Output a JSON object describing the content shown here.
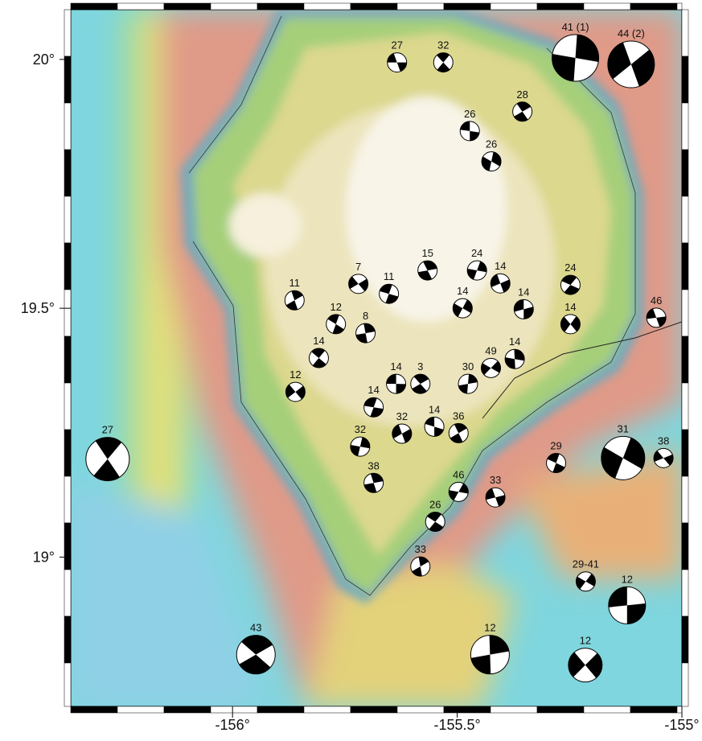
{
  "map": {
    "xlim": [
      -156.36,
      -155
    ],
    "ylim": [
      18.7,
      20.1
    ],
    "xticks": [
      {
        "value": -156,
        "label": "-156°"
      },
      {
        "value": -155.5,
        "label": "-155.5°"
      },
      {
        "value": -155,
        "label": "-155°"
      }
    ],
    "yticks": [
      {
        "value": 20,
        "label": "20°"
      },
      {
        "value": 19.5,
        "label": "19.5°"
      },
      {
        "value": 19,
        "label": "19°"
      }
    ],
    "events": [
      {
        "label": "27",
        "lon": -155.634,
        "lat": 19.994
      },
      {
        "label": "32",
        "lon": -155.531,
        "lat": 19.994
      },
      {
        "label": "41 (1)",
        "lon": -155.237,
        "lat": 20.003
      },
      {
        "label": "44 (2)",
        "lon": -155.113,
        "lat": 19.99
      },
      {
        "label": "26",
        "lon": -155.472,
        "lat": 19.856
      },
      {
        "label": "28",
        "lon": -155.355,
        "lat": 19.895
      },
      {
        "label": "26",
        "lon": -155.424,
        "lat": 19.795
      },
      {
        "label": "7",
        "lon": -155.72,
        "lat": 19.549
      },
      {
        "label": "11",
        "lon": -155.652,
        "lat": 19.529
      },
      {
        "label": "15",
        "lon": -155.566,
        "lat": 19.576
      },
      {
        "label": "24",
        "lon": -155.456,
        "lat": 19.576
      },
      {
        "label": "14",
        "lon": -155.404,
        "lat": 19.55
      },
      {
        "label": "24",
        "lon": -155.248,
        "lat": 19.547
      },
      {
        "label": "11",
        "lon": -155.862,
        "lat": 19.516
      },
      {
        "label": "14",
        "lon": -155.488,
        "lat": 19.5
      },
      {
        "label": "14",
        "lon": -155.352,
        "lat": 19.498
      },
      {
        "label": "12",
        "lon": -155.77,
        "lat": 19.468
      },
      {
        "label": "8",
        "lon": -155.704,
        "lat": 19.45
      },
      {
        "label": "14",
        "lon": -155.248,
        "lat": 19.468
      },
      {
        "label": "46",
        "lon": -155.057,
        "lat": 19.481
      },
      {
        "label": "14",
        "lon": -155.808,
        "lat": 19.4
      },
      {
        "label": "14",
        "lon": -155.372,
        "lat": 19.398
      },
      {
        "label": "49",
        "lon": -155.425,
        "lat": 19.38
      },
      {
        "label": "14",
        "lon": -155.636,
        "lat": 19.348
      },
      {
        "label": "3",
        "lon": -155.582,
        "lat": 19.348
      },
      {
        "label": "30",
        "lon": -155.476,
        "lat": 19.348
      },
      {
        "label": "12",
        "lon": -155.86,
        "lat": 19.332
      },
      {
        "label": "14",
        "lon": -155.686,
        "lat": 19.301
      },
      {
        "label": "27",
        "lon": -156.278,
        "lat": 19.197
      },
      {
        "label": "32",
        "lon": -155.716,
        "lat": 19.222
      },
      {
        "label": "32",
        "lon": -155.623,
        "lat": 19.248
      },
      {
        "label": "14",
        "lon": -155.551,
        "lat": 19.262
      },
      {
        "label": "36",
        "lon": -155.497,
        "lat": 19.249
      },
      {
        "label": "31",
        "lon": -155.131,
        "lat": 19.199
      },
      {
        "label": "38",
        "lon": -155.041,
        "lat": 19.199
      },
      {
        "label": "29",
        "lon": -155.28,
        "lat": 19.189
      },
      {
        "label": "38",
        "lon": -155.686,
        "lat": 19.149
      },
      {
        "label": "46",
        "lon": -155.497,
        "lat": 19.131
      },
      {
        "label": "33",
        "lon": -155.415,
        "lat": 19.12
      },
      {
        "label": "26",
        "lon": -155.549,
        "lat": 19.071
      },
      {
        "label": "33",
        "lon": -155.582,
        "lat": 18.981
      },
      {
        "label": "29-41",
        "lon": -155.214,
        "lat": 18.951
      },
      {
        "label": "12",
        "lon": -155.122,
        "lat": 18.903
      },
      {
        "label": "43",
        "lon": -155.948,
        "lat": 18.804
      },
      {
        "label": "12",
        "lon": -155.427,
        "lat": 18.804
      },
      {
        "label": "12",
        "lon": -155.215,
        "lat": 18.783
      }
    ]
  }
}
